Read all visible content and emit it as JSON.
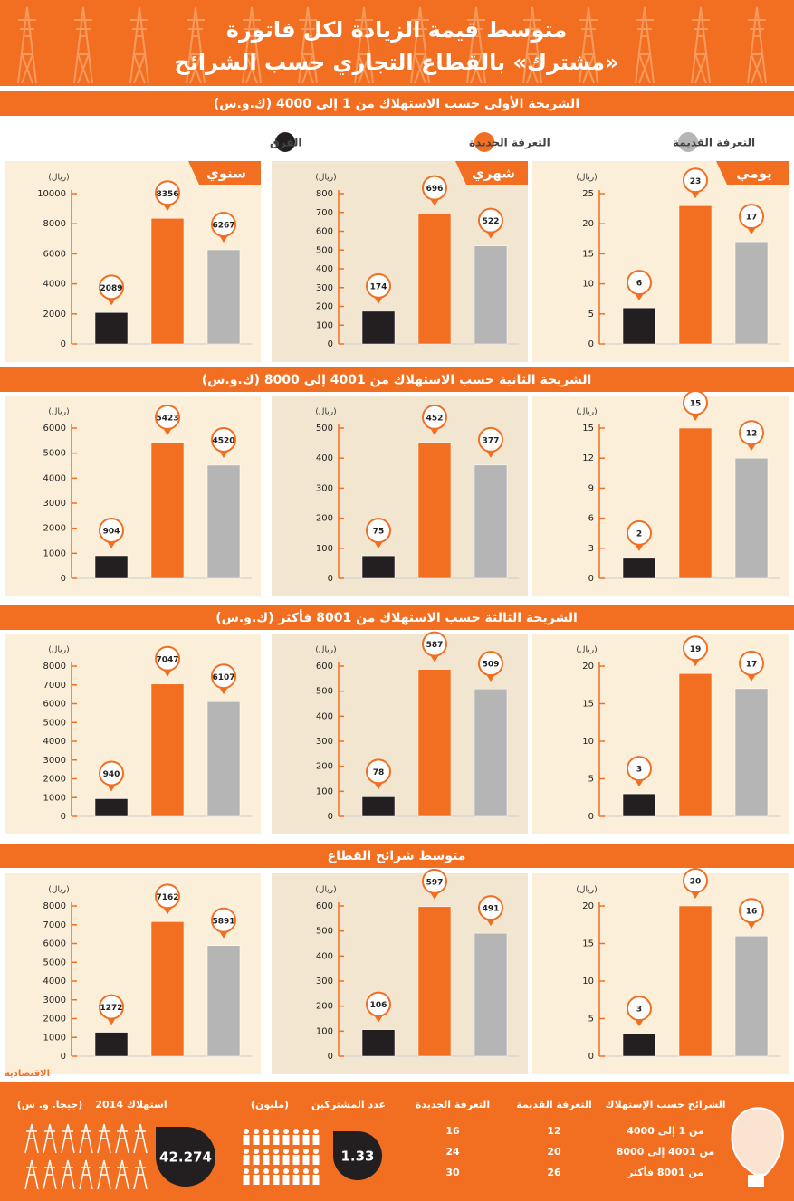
{
  "header": {
    "title_lines": [
      "متوسط قيمة الزيادة لكل فاتورة",
      "«مشترك» بالقطاع التجاري حسب الشرائح"
    ]
  },
  "legend": [
    {
      "name": "التعرفة القديمة",
      "color": "#b5b5b5"
    },
    {
      "name": "التعرفة الجديدة",
      "color": "#f26f21"
    },
    {
      "name": "الفرق",
      "color": "#231f20"
    }
  ],
  "sections": [
    {
      "title": "الشريحة الأولى حسب الاستهلاك من 1 إلى 4000 (ك.و.س)"
    },
    {
      "title": "الشريحة الثانية حسب الاستهلاك من 4001 إلى 8000 (ك.و.س)"
    },
    {
      "title": "الشريحة الثالثة حسب الاستهلاك من 8001 فأكثر (ك.و.س)"
    },
    {
      "title": "متوسط شرائح القطاع"
    }
  ],
  "chart_data": [
    {
      "type": "bar",
      "label": "يومي",
      "y_unit": "(ريال)",
      "ylim": [
        0,
        25
      ],
      "yticks": [
        0,
        5,
        10,
        15,
        20,
        25
      ],
      "values": [
        17,
        23,
        6
      ]
    },
    {
      "type": "bar",
      "label": "شهري",
      "y_unit": "(ريال)",
      "ylim": [
        0,
        800
      ],
      "yticks": [
        0,
        100,
        200,
        300,
        400,
        500,
        600,
        700,
        800
      ],
      "values": [
        522,
        696,
        174
      ]
    },
    {
      "type": "bar",
      "label": "سنوي",
      "y_unit": "(ريال)",
      "ylim": [
        0,
        10000
      ],
      "yticks": [
        0,
        2000,
        4000,
        6000,
        8000,
        10000
      ],
      "values": [
        6267,
        8356,
        2089
      ]
    },
    {
      "type": "bar",
      "y_unit": "(ريال)",
      "ylim": [
        0,
        15
      ],
      "yticks": [
        0,
        3,
        6,
        9,
        12,
        15
      ],
      "values": [
        12,
        15,
        2
      ]
    },
    {
      "type": "bar",
      "y_unit": "(ريال)",
      "ylim": [
        0,
        500
      ],
      "yticks": [
        0,
        100,
        200,
        300,
        400,
        500
      ],
      "values": [
        377,
        452,
        75
      ]
    },
    {
      "type": "bar",
      "y_unit": "(ريال)",
      "ylim": [
        0,
        6000
      ],
      "yticks": [
        0,
        1000,
        2000,
        3000,
        4000,
        5000,
        6000
      ],
      "values": [
        4520,
        5423,
        904
      ]
    },
    {
      "type": "bar",
      "y_unit": "(ريال)",
      "ylim": [
        0,
        20
      ],
      "yticks": [
        0,
        5,
        10,
        15,
        20
      ],
      "values": [
        17,
        19,
        3
      ]
    },
    {
      "type": "bar",
      "y_unit": "(ريال)",
      "ylim": [
        0,
        600
      ],
      "yticks": [
        0,
        100,
        200,
        300,
        400,
        500,
        600
      ],
      "values": [
        509,
        587,
        78
      ]
    },
    {
      "type": "bar",
      "y_unit": "(ريال)",
      "ylim": [
        0,
        8000
      ],
      "yticks": [
        0,
        1000,
        2000,
        3000,
        4000,
        5000,
        6000,
        7000,
        8000
      ],
      "values": [
        6107,
        7047,
        940
      ]
    },
    {
      "type": "bar",
      "y_unit": "(ريال)",
      "ylim": [
        0,
        20
      ],
      "yticks": [
        0,
        5,
        10,
        15,
        20
      ],
      "values": [
        16,
        20,
        3
      ]
    },
    {
      "type": "bar",
      "y_unit": "(ريال)",
      "ylim": [
        0,
        600
      ],
      "yticks": [
        0,
        100,
        200,
        300,
        400,
        500,
        600
      ],
      "values": [
        491,
        597,
        106
      ]
    },
    {
      "type": "bar",
      "y_unit": "(ريال)",
      "ylim": [
        0,
        8000
      ],
      "yticks": [
        0,
        1000,
        2000,
        3000,
        4000,
        5000,
        6000,
        7000,
        8000
      ],
      "values": [
        5891,
        7162,
        1272
      ]
    }
  ],
  "footer": {
    "logo": "الاقتصادية",
    "table": {
      "headers": [
        "الشرائح حسب الإستهلاك",
        "التعرفة القديمة",
        "التعرفة الجديدة"
      ],
      "rows": [
        [
          "من 1 إلى 4000",
          12,
          16
        ],
        [
          "من 4001 إلى 8000",
          20,
          24
        ],
        [
          "من 8001 فأكثر",
          26,
          30
        ]
      ]
    },
    "subscribers": {
      "label": "عدد المشتركين",
      "unit": "(مليون)",
      "value": 1.33
    },
    "consumption": {
      "label": "استهلاك 2014",
      "unit": "(جيجا. و. س)",
      "value": 42.274
    }
  }
}
